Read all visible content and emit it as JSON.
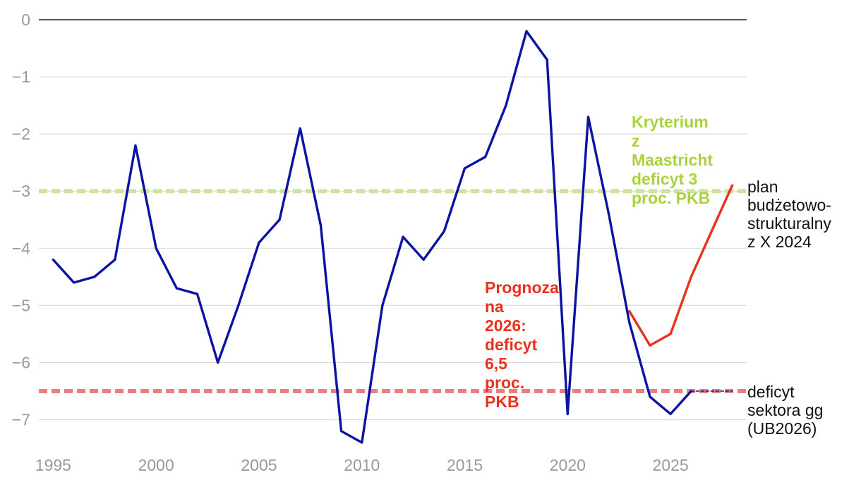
{
  "chart_data": {
    "type": "line",
    "title": "",
    "xlabel": "",
    "ylabel": "",
    "xlim": [
      1994.3,
      2028.7
    ],
    "ylim": [
      -7.4,
      0
    ],
    "x_ticks": [
      1995,
      2000,
      2005,
      2010,
      2015,
      2020,
      2025
    ],
    "y_ticks": [
      0,
      -1,
      -2,
      -3,
      -4,
      -5,
      -6,
      -7
    ],
    "y_tick_labels": [
      "0",
      "−1",
      "−2",
      "−3",
      "−4",
      "−5",
      "−6",
      "−7"
    ],
    "grid": true,
    "series": [
      {
        "color": "#0a14a0",
        "style": "solid",
        "x": [
          1995,
          1996,
          1997,
          1998,
          1999,
          2000,
          2001,
          2002,
          2003,
          2004,
          2005,
          2006,
          2007,
          2008,
          2009,
          2010,
          2011,
          2012,
          2013,
          2014,
          2015,
          2016,
          2017,
          2018,
          2019,
          2020,
          2021,
          2022,
          2023,
          2024,
          2025,
          2026
        ],
        "y": [
          -4.2,
          -4.6,
          -4.5,
          -4.2,
          -2.2,
          -4.0,
          -4.7,
          -4.8,
          -6.0,
          -5.0,
          -3.9,
          -3.5,
          -1.9,
          -3.6,
          -7.2,
          -7.4,
          -5.0,
          -3.8,
          -4.2,
          -3.7,
          -2.6,
          -2.4,
          -1.5,
          -0.2,
          -0.7,
          -6.9,
          -1.7,
          -3.4,
          -5.3,
          -6.6,
          -6.9,
          -6.5
        ]
      },
      {
        "name": "plan budżetowo-strukturalny z X 2024",
        "color": "#e8321e",
        "style": "solid",
        "x": [
          2023,
          2024,
          2025,
          2026,
          2027,
          2028
        ],
        "y": [
          -5.1,
          -5.7,
          -5.5,
          -4.5,
          -3.7,
          -2.9
        ]
      },
      {
        "name": "deficyt sektora gg (UB2026)",
        "color": "#0a14a0",
        "style": "dashed",
        "x": [
          2026,
          2027,
          2028
        ],
        "y": [
          -6.5,
          -6.5,
          -6.5
        ]
      }
    ],
    "reference_lines": [
      {
        "y": -3,
        "color": "#cde59a"
      },
      {
        "y": -6.5,
        "color": "#e88080"
      }
    ],
    "annotations": [
      {
        "text": "Kryterium\nz\nMaastricht\ndeficyt 3\nproc. PKB",
        "color": "#a9d23c"
      },
      {
        "text": "Prognoza\nna\n2026:\ndeficyt\n6,5\nproc.\nPKB",
        "color": "#e8321e"
      }
    ],
    "side_labels": [
      {
        "text": "plan\nbudżetowo-\nstrukturalny\nz X 2024"
      },
      {
        "text": "deficyt\nsektora gg\n(UB2026)"
      }
    ]
  }
}
